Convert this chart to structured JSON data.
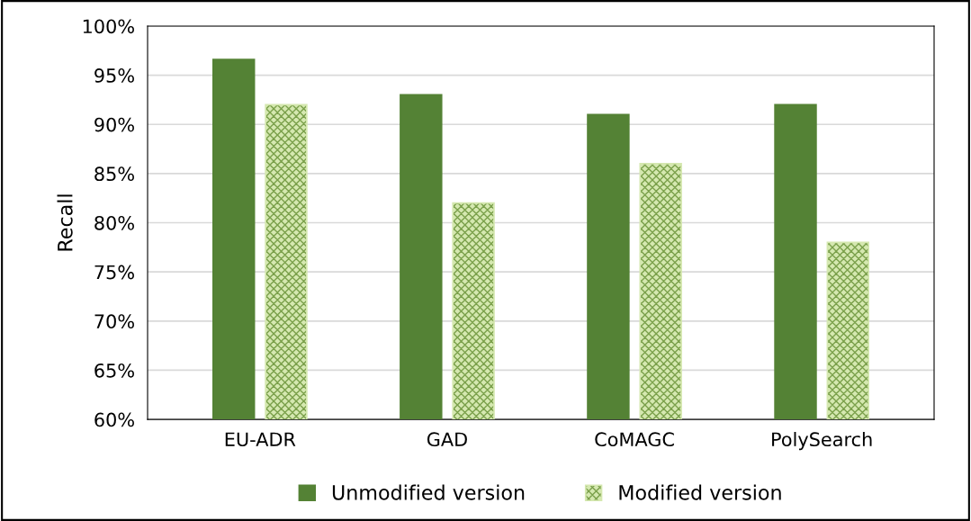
{
  "chart_data": {
    "type": "bar",
    "ylabel": "Recall",
    "categories": [
      "EU-ADR",
      "GAD",
      "CoMAGC",
      "PolySearch"
    ],
    "series": [
      {
        "name": "Unmodified version",
        "color": "#548235",
        "values": [
          96.6,
          93,
          91,
          92
        ]
      },
      {
        "name": "Modified version",
        "color": "#d5e8b0",
        "values": [
          92,
          82,
          86,
          78
        ]
      }
    ],
    "ylim": [
      60,
      100
    ],
    "yticks": [
      {
        "value": 60,
        "label": "60%"
      },
      {
        "value": 65,
        "label": "65%"
      },
      {
        "value": 70,
        "label": "70%"
      },
      {
        "value": 75,
        "label": "75%"
      },
      {
        "value": 80,
        "label": "80%"
      },
      {
        "value": 85,
        "label": "85%"
      },
      {
        "value": 90,
        "label": "90%"
      },
      {
        "value": 95,
        "label": "95%"
      },
      {
        "value": 100,
        "label": "100%"
      }
    ],
    "grid": "y",
    "legend": "bottom"
  }
}
